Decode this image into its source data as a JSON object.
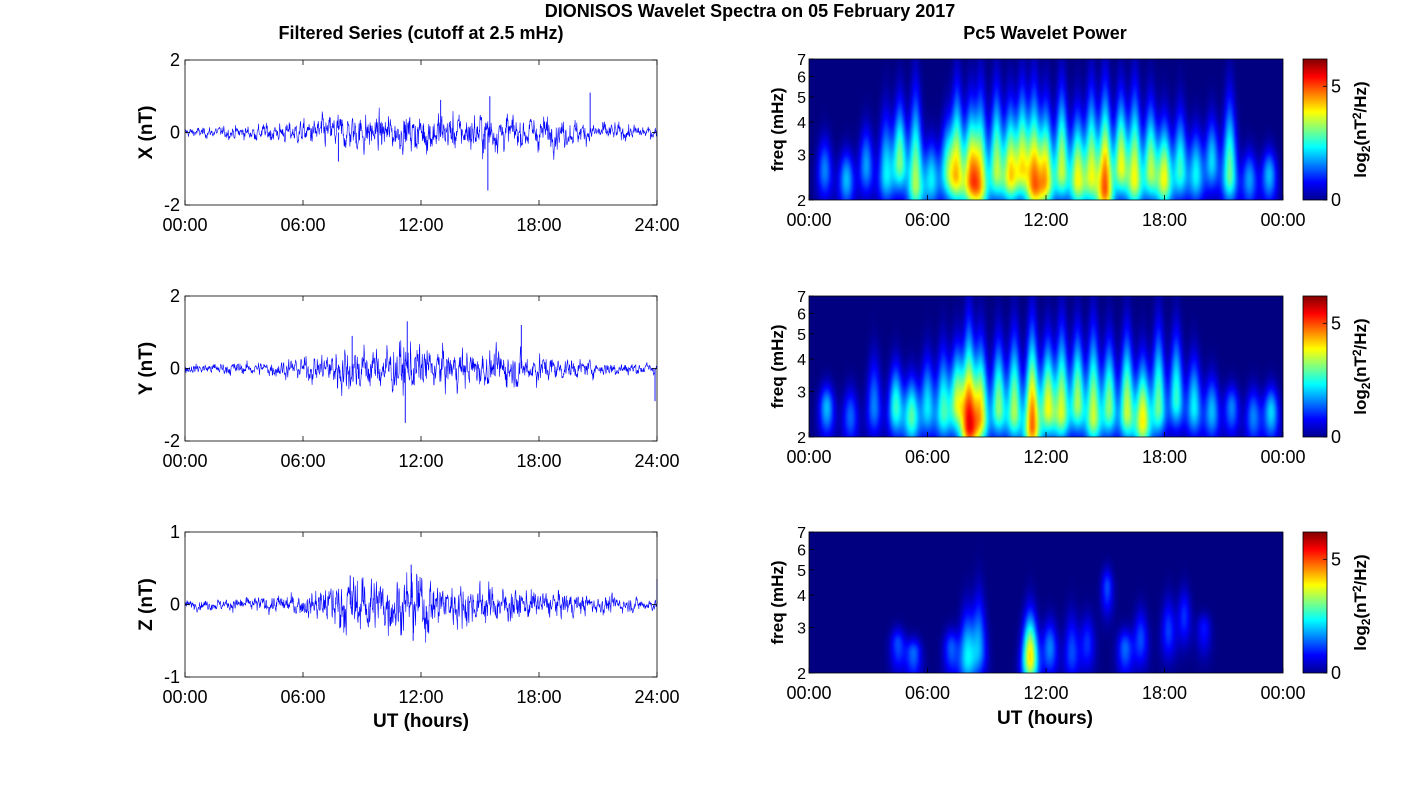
{
  "figure": {
    "title": "DIONISOS Wavelet Spectra on 05 February 2017",
    "left_column_title": "Filtered Series (cutoff at 2.5 mHz)",
    "right_column_title": "Pc5 Wavelet Power",
    "x_label": "UT (hours)"
  },
  "colors": {
    "trace": "#0000ff",
    "background_low": "#00008f",
    "colormap": "jet"
  },
  "chart_data": [
    {
      "type": "line",
      "panel": "X",
      "ylabel": "X (nT)",
      "xlabel": "",
      "ylim": [
        -2,
        2
      ],
      "yticks": [
        "2",
        "0",
        "-2"
      ],
      "xlim_hours": [
        0,
        24
      ],
      "xticks": [
        "00:00",
        "06:00",
        "12:00",
        "18:00",
        "24:00"
      ],
      "series": [
        {
          "name": "",
          "noise_envelope_nT": {
            "hours": [
              0,
              2,
              4,
              6,
              7,
              8,
              9,
              10,
              11,
              12,
              13,
              14,
              15,
              16,
              17,
              18,
              20,
              22,
              24
            ],
            "amplitude": [
              0.08,
              0.1,
              0.15,
              0.2,
              0.28,
              0.3,
              0.35,
              0.3,
              0.3,
              0.35,
              0.35,
              0.3,
              0.38,
              0.3,
              0.28,
              0.3,
              0.2,
              0.15,
              0.1
            ]
          },
          "spikes": [
            {
              "hour": 15.4,
              "value": -1.6
            },
            {
              "hour": 15.5,
              "value": 1.0
            },
            {
              "hour": 20.6,
              "value": 1.1
            },
            {
              "hour": 13.0,
              "value": 0.9
            },
            {
              "hour": 7.8,
              "value": -0.8
            }
          ]
        }
      ]
    },
    {
      "type": "line",
      "panel": "Y",
      "ylabel": "Y (nT)",
      "xlabel": "",
      "ylim": [
        -2,
        2
      ],
      "yticks": [
        "2",
        "0",
        "-2"
      ],
      "xlim_hours": [
        0,
        24
      ],
      "xticks": [
        "00:00",
        "06:00",
        "12:00",
        "18:00",
        "24:00"
      ],
      "series": [
        {
          "name": "",
          "noise_envelope_nT": {
            "hours": [
              0,
              2,
              4,
              6,
              7,
              8,
              9,
              10,
              11,
              12,
              13,
              14,
              15,
              16,
              17,
              18,
              20,
              22,
              24
            ],
            "amplitude": [
              0.08,
              0.1,
              0.12,
              0.2,
              0.25,
              0.45,
              0.4,
              0.35,
              0.5,
              0.4,
              0.35,
              0.35,
              0.3,
              0.3,
              0.3,
              0.25,
              0.15,
              0.12,
              0.1
            ]
          },
          "spikes": [
            {
              "hour": 11.2,
              "value": -1.5
            },
            {
              "hour": 11.3,
              "value": 1.3
            },
            {
              "hour": 17.1,
              "value": 1.2
            },
            {
              "hour": 8.5,
              "value": 0.9
            },
            {
              "hour": 23.9,
              "value": -0.9
            }
          ]
        }
      ]
    },
    {
      "type": "line",
      "panel": "Z",
      "ylabel": "Z (nT)",
      "xlabel": "UT (hours)",
      "ylim": [
        -1,
        1
      ],
      "yticks": [
        "1",
        "0",
        "-1"
      ],
      "xlim_hours": [
        0,
        24
      ],
      "xticks": [
        "00:00",
        "06:00",
        "12:00",
        "18:00",
        "24:00"
      ],
      "series": [
        {
          "name": "",
          "noise_envelope_nT": {
            "hours": [
              0,
              2,
              4,
              6,
              7,
              8,
              9,
              10,
              11,
              12,
              13,
              14,
              15,
              16,
              17,
              18,
              20,
              22,
              24
            ],
            "amplitude": [
              0.04,
              0.05,
              0.07,
              0.1,
              0.15,
              0.25,
              0.28,
              0.22,
              0.25,
              0.3,
              0.2,
              0.18,
              0.18,
              0.15,
              0.15,
              0.12,
              0.1,
              0.07,
              0.05
            ]
          },
          "spikes": [
            {
              "hour": 11.5,
              "value": 0.55
            },
            {
              "hour": 11.6,
              "value": -0.5
            },
            {
              "hour": 8.4,
              "value": 0.4
            },
            {
              "hour": 24.0,
              "value": 0.35
            }
          ]
        }
      ]
    },
    {
      "type": "heatmap",
      "panel": "X",
      "ylabel": "freq (mHz)",
      "xlabel": "",
      "y_scale": "log",
      "ylim_mHz": [
        2,
        7
      ],
      "yticks": [
        "2",
        "3",
        "4",
        "5",
        "6",
        "7"
      ],
      "xlim_hours": [
        0,
        24
      ],
      "xticks": [
        "00:00",
        "06:00",
        "12:00",
        "18:00",
        "00:00"
      ],
      "colorbar": {
        "label": "log2(nT2/Hz)",
        "ticks": [
          "0",
          "5"
        ],
        "range": [
          0,
          6.2
        ]
      },
      "blobs": [
        {
          "hour": 0.8,
          "peak_mHz": 2.6,
          "top_mHz": 4.0,
          "power": 1.8
        },
        {
          "hour": 1.9,
          "peak_mHz": 2.4,
          "top_mHz": 3.5,
          "power": 2.2
        },
        {
          "hour": 2.9,
          "peak_mHz": 2.7,
          "top_mHz": 4.5,
          "power": 2.0
        },
        {
          "hour": 3.9,
          "peak_mHz": 2.5,
          "top_mHz": 5.5,
          "power": 2.5
        },
        {
          "hour": 4.6,
          "peak_mHz": 2.8,
          "top_mHz": 6.0,
          "power": 3.5
        },
        {
          "hour": 5.4,
          "peak_mHz": 2.3,
          "top_mHz": 7.0,
          "power": 3.8
        },
        {
          "hour": 6.2,
          "peak_mHz": 2.4,
          "top_mHz": 4.0,
          "power": 2.5
        },
        {
          "hour": 7.0,
          "peak_mHz": 2.6,
          "top_mHz": 5.0,
          "power": 2.8
        },
        {
          "hour": 7.5,
          "peak_mHz": 2.5,
          "top_mHz": 7.0,
          "power": 4.2
        },
        {
          "hour": 8.2,
          "peak_mHz": 2.4,
          "top_mHz": 6.0,
          "power": 4.6
        },
        {
          "hour": 8.7,
          "peak_mHz": 2.3,
          "top_mHz": 7.0,
          "power": 4.0
        },
        {
          "hour": 9.5,
          "peak_mHz": 2.6,
          "top_mHz": 7.0,
          "power": 3.8
        },
        {
          "hour": 10.2,
          "peak_mHz": 2.5,
          "top_mHz": 6.0,
          "power": 4.3
        },
        {
          "hour": 10.8,
          "peak_mHz": 2.7,
          "top_mHz": 7.0,
          "power": 4.0
        },
        {
          "hour": 11.4,
          "peak_mHz": 2.3,
          "top_mHz": 7.0,
          "power": 4.8
        },
        {
          "hour": 12.0,
          "peak_mHz": 2.4,
          "top_mHz": 6.0,
          "power": 4.5
        },
        {
          "hour": 12.8,
          "peak_mHz": 2.6,
          "top_mHz": 7.0,
          "power": 4.0
        },
        {
          "hour": 13.6,
          "peak_mHz": 2.4,
          "top_mHz": 5.5,
          "power": 4.2
        },
        {
          "hour": 14.3,
          "peak_mHz": 2.5,
          "top_mHz": 7.0,
          "power": 4.0
        },
        {
          "hour": 15.0,
          "peak_mHz": 2.2,
          "top_mHz": 7.0,
          "power": 5.4
        },
        {
          "hour": 15.8,
          "peak_mHz": 2.7,
          "top_mHz": 6.5,
          "power": 4.2
        },
        {
          "hour": 16.5,
          "peak_mHz": 2.4,
          "top_mHz": 7.0,
          "power": 4.2
        },
        {
          "hour": 17.3,
          "peak_mHz": 2.6,
          "top_mHz": 6.0,
          "power": 3.8
        },
        {
          "hour": 18.0,
          "peak_mHz": 2.4,
          "top_mHz": 5.0,
          "power": 4.2
        },
        {
          "hour": 18.8,
          "peak_mHz": 2.6,
          "top_mHz": 5.5,
          "power": 3.0
        },
        {
          "hour": 19.6,
          "peak_mHz": 2.5,
          "top_mHz": 4.5,
          "power": 2.6
        },
        {
          "hour": 20.4,
          "peak_mHz": 2.8,
          "top_mHz": 5.0,
          "power": 2.4
        },
        {
          "hour": 21.3,
          "peak_mHz": 2.5,
          "top_mHz": 6.5,
          "power": 3.4
        },
        {
          "hour": 22.3,
          "peak_mHz": 2.4,
          "top_mHz": 3.5,
          "power": 2.0
        },
        {
          "hour": 23.3,
          "peak_mHz": 2.5,
          "top_mHz": 3.5,
          "power": 2.2
        }
      ]
    },
    {
      "type": "heatmap",
      "panel": "Y",
      "ylabel": "freq (mHz)",
      "xlabel": "",
      "y_scale": "log",
      "ylim_mHz": [
        2,
        7
      ],
      "yticks": [
        "2",
        "3",
        "4",
        "5",
        "6",
        "7"
      ],
      "xlim_hours": [
        0,
        24
      ],
      "xticks": [
        "00:00",
        "06:00",
        "12:00",
        "18:00",
        "00:00"
      ],
      "colorbar": {
        "label": "log2(nT2/Hz)",
        "ticks": [
          "0",
          "5"
        ],
        "range": [
          0,
          6.2
        ]
      },
      "blobs": [
        {
          "hour": 0.9,
          "peak_mHz": 2.6,
          "top_mHz": 3.5,
          "power": 2.2
        },
        {
          "hour": 2.1,
          "peak_mHz": 2.4,
          "top_mHz": 3.5,
          "power": 1.6
        },
        {
          "hour": 3.3,
          "peak_mHz": 2.6,
          "top_mHz": 5.0,
          "power": 1.8
        },
        {
          "hour": 4.4,
          "peak_mHz": 2.6,
          "top_mHz": 4.5,
          "power": 3.0
        },
        {
          "hour": 5.2,
          "peak_mHz": 2.4,
          "top_mHz": 4.0,
          "power": 3.2
        },
        {
          "hour": 6.0,
          "peak_mHz": 2.6,
          "top_mHz": 5.0,
          "power": 2.5
        },
        {
          "hour": 6.8,
          "peak_mHz": 2.5,
          "top_mHz": 5.5,
          "power": 3.0
        },
        {
          "hour": 7.5,
          "peak_mHz": 2.7,
          "top_mHz": 5.5,
          "power": 3.8
        },
        {
          "hour": 8.1,
          "peak_mHz": 2.2,
          "top_mHz": 7.0,
          "power": 5.6
        },
        {
          "hour": 8.7,
          "peak_mHz": 2.4,
          "top_mHz": 6.0,
          "power": 4.4
        },
        {
          "hour": 9.6,
          "peak_mHz": 2.6,
          "top_mHz": 6.0,
          "power": 3.6
        },
        {
          "hour": 10.4,
          "peak_mHz": 2.5,
          "top_mHz": 6.5,
          "power": 3.8
        },
        {
          "hour": 11.3,
          "peak_mHz": 2.2,
          "top_mHz": 7.0,
          "power": 5.4
        },
        {
          "hour": 12.1,
          "peak_mHz": 2.6,
          "top_mHz": 6.0,
          "power": 4.2
        },
        {
          "hour": 12.8,
          "peak_mHz": 2.5,
          "top_mHz": 7.0,
          "power": 4.0
        },
        {
          "hour": 13.6,
          "peak_mHz": 2.7,
          "top_mHz": 6.5,
          "power": 3.8
        },
        {
          "hour": 14.4,
          "peak_mHz": 2.4,
          "top_mHz": 7.0,
          "power": 4.0
        },
        {
          "hour": 15.2,
          "peak_mHz": 2.6,
          "top_mHz": 6.0,
          "power": 3.6
        },
        {
          "hour": 16.1,
          "peak_mHz": 2.5,
          "top_mHz": 6.5,
          "power": 4.0
        },
        {
          "hour": 16.9,
          "peak_mHz": 2.3,
          "top_mHz": 5.0,
          "power": 4.4
        },
        {
          "hour": 17.7,
          "peak_mHz": 2.6,
          "top_mHz": 7.0,
          "power": 3.4
        },
        {
          "hour": 18.6,
          "peak_mHz": 2.8,
          "top_mHz": 6.5,
          "power": 3.0
        },
        {
          "hour": 19.5,
          "peak_mHz": 2.6,
          "top_mHz": 5.0,
          "power": 2.6
        },
        {
          "hour": 20.4,
          "peak_mHz": 2.5,
          "top_mHz": 4.0,
          "power": 2.2
        },
        {
          "hour": 21.4,
          "peak_mHz": 2.6,
          "top_mHz": 3.5,
          "power": 1.8
        },
        {
          "hour": 22.5,
          "peak_mHz": 2.4,
          "top_mHz": 3.5,
          "power": 1.8
        },
        {
          "hour": 23.4,
          "peak_mHz": 2.5,
          "top_mHz": 3.5,
          "power": 2.4
        }
      ]
    },
    {
      "type": "heatmap",
      "panel": "Z",
      "ylabel": "freq (mHz)",
      "xlabel": "UT (hours)",
      "y_scale": "log",
      "ylim_mHz": [
        2,
        7
      ],
      "yticks": [
        "2",
        "3",
        "4",
        "5",
        "6",
        "7"
      ],
      "xlim_hours": [
        0,
        24
      ],
      "xticks": [
        "00:00",
        "06:00",
        "12:00",
        "18:00",
        "00:00"
      ],
      "colorbar": {
        "label": "log2(nT2/Hz)",
        "ticks": [
          "0",
          "5"
        ],
        "range": [
          0,
          6.2
        ]
      },
      "blobs": [
        {
          "hour": 4.5,
          "peak_mHz": 2.6,
          "top_mHz": 3.2,
          "power": 1.4
        },
        {
          "hour": 5.3,
          "peak_mHz": 2.4,
          "top_mHz": 2.9,
          "power": 1.6
        },
        {
          "hour": 7.2,
          "peak_mHz": 2.5,
          "top_mHz": 3.2,
          "power": 1.5
        },
        {
          "hour": 8.0,
          "peak_mHz": 2.3,
          "top_mHz": 4.2,
          "power": 2.4
        },
        {
          "hour": 8.6,
          "peak_mHz": 2.5,
          "top_mHz": 5.0,
          "power": 2.0
        },
        {
          "hour": 11.2,
          "peak_mHz": 2.3,
          "top_mHz": 4.0,
          "power": 4.6
        },
        {
          "hour": 12.2,
          "peak_mHz": 2.5,
          "top_mHz": 3.6,
          "power": 1.8
        },
        {
          "hour": 13.3,
          "peak_mHz": 2.4,
          "top_mHz": 4.0,
          "power": 1.4
        },
        {
          "hour": 14.1,
          "peak_mHz": 2.6,
          "top_mHz": 3.8,
          "power": 1.2
        },
        {
          "hour": 15.1,
          "peak_mHz": 4.3,
          "top_mHz": 5.5,
          "power": 1.4
        },
        {
          "hour": 16.0,
          "peak_mHz": 2.5,
          "top_mHz": 3.2,
          "power": 1.6
        },
        {
          "hour": 16.8,
          "peak_mHz": 2.7,
          "top_mHz": 4.0,
          "power": 1.4
        },
        {
          "hour": 18.2,
          "peak_mHz": 2.9,
          "top_mHz": 4.5,
          "power": 1.3
        },
        {
          "hour": 19.0,
          "peak_mHz": 3.3,
          "top_mHz": 4.8,
          "power": 1.2
        },
        {
          "hour": 20.0,
          "peak_mHz": 3.0,
          "top_mHz": 3.6,
          "power": 1.0
        }
      ]
    }
  ]
}
